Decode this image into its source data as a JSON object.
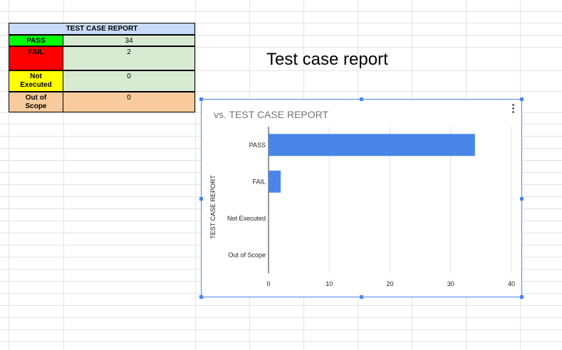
{
  "report": {
    "title": "TEST CASE REPORT",
    "rows": [
      {
        "label_lines": [
          "PASS"
        ],
        "value": "34",
        "label_color": "#00ff00",
        "value_color": "#d9ead3"
      },
      {
        "label_lines": [
          "FAIL"
        ],
        "value": "2",
        "label_color": "#ff0000",
        "value_color": "#d9ead3"
      },
      {
        "label_lines": [
          "Not",
          "Executed"
        ],
        "value": "0",
        "label_color": "#ffff00",
        "value_color": "#d9ead3"
      },
      {
        "label_lines": [
          "Out of",
          "Scope"
        ],
        "value": "0",
        "label_color": "#f9cb9c",
        "value_color": "#f9cb9c"
      }
    ]
  },
  "page_title": "Test case report",
  "chart_data": {
    "type": "bar",
    "orientation": "horizontal",
    "title": "vs. TEST CASE REPORT",
    "ylabel": "TEST CASE REPORT",
    "xlabel": "",
    "categories": [
      "PASS",
      "FAIL",
      "Not Executed",
      "Out of Scope"
    ],
    "values": [
      34,
      2,
      0,
      0
    ],
    "xlim": [
      0,
      40
    ],
    "xticks": [
      0,
      10,
      20,
      30,
      40
    ],
    "grid": true,
    "bar_color": "#4a86e8"
  },
  "colors": {
    "accent": "#4a86e8",
    "header_fill": "#c9daf8"
  },
  "icons": {
    "chart_menu": "more-vert-icon"
  }
}
